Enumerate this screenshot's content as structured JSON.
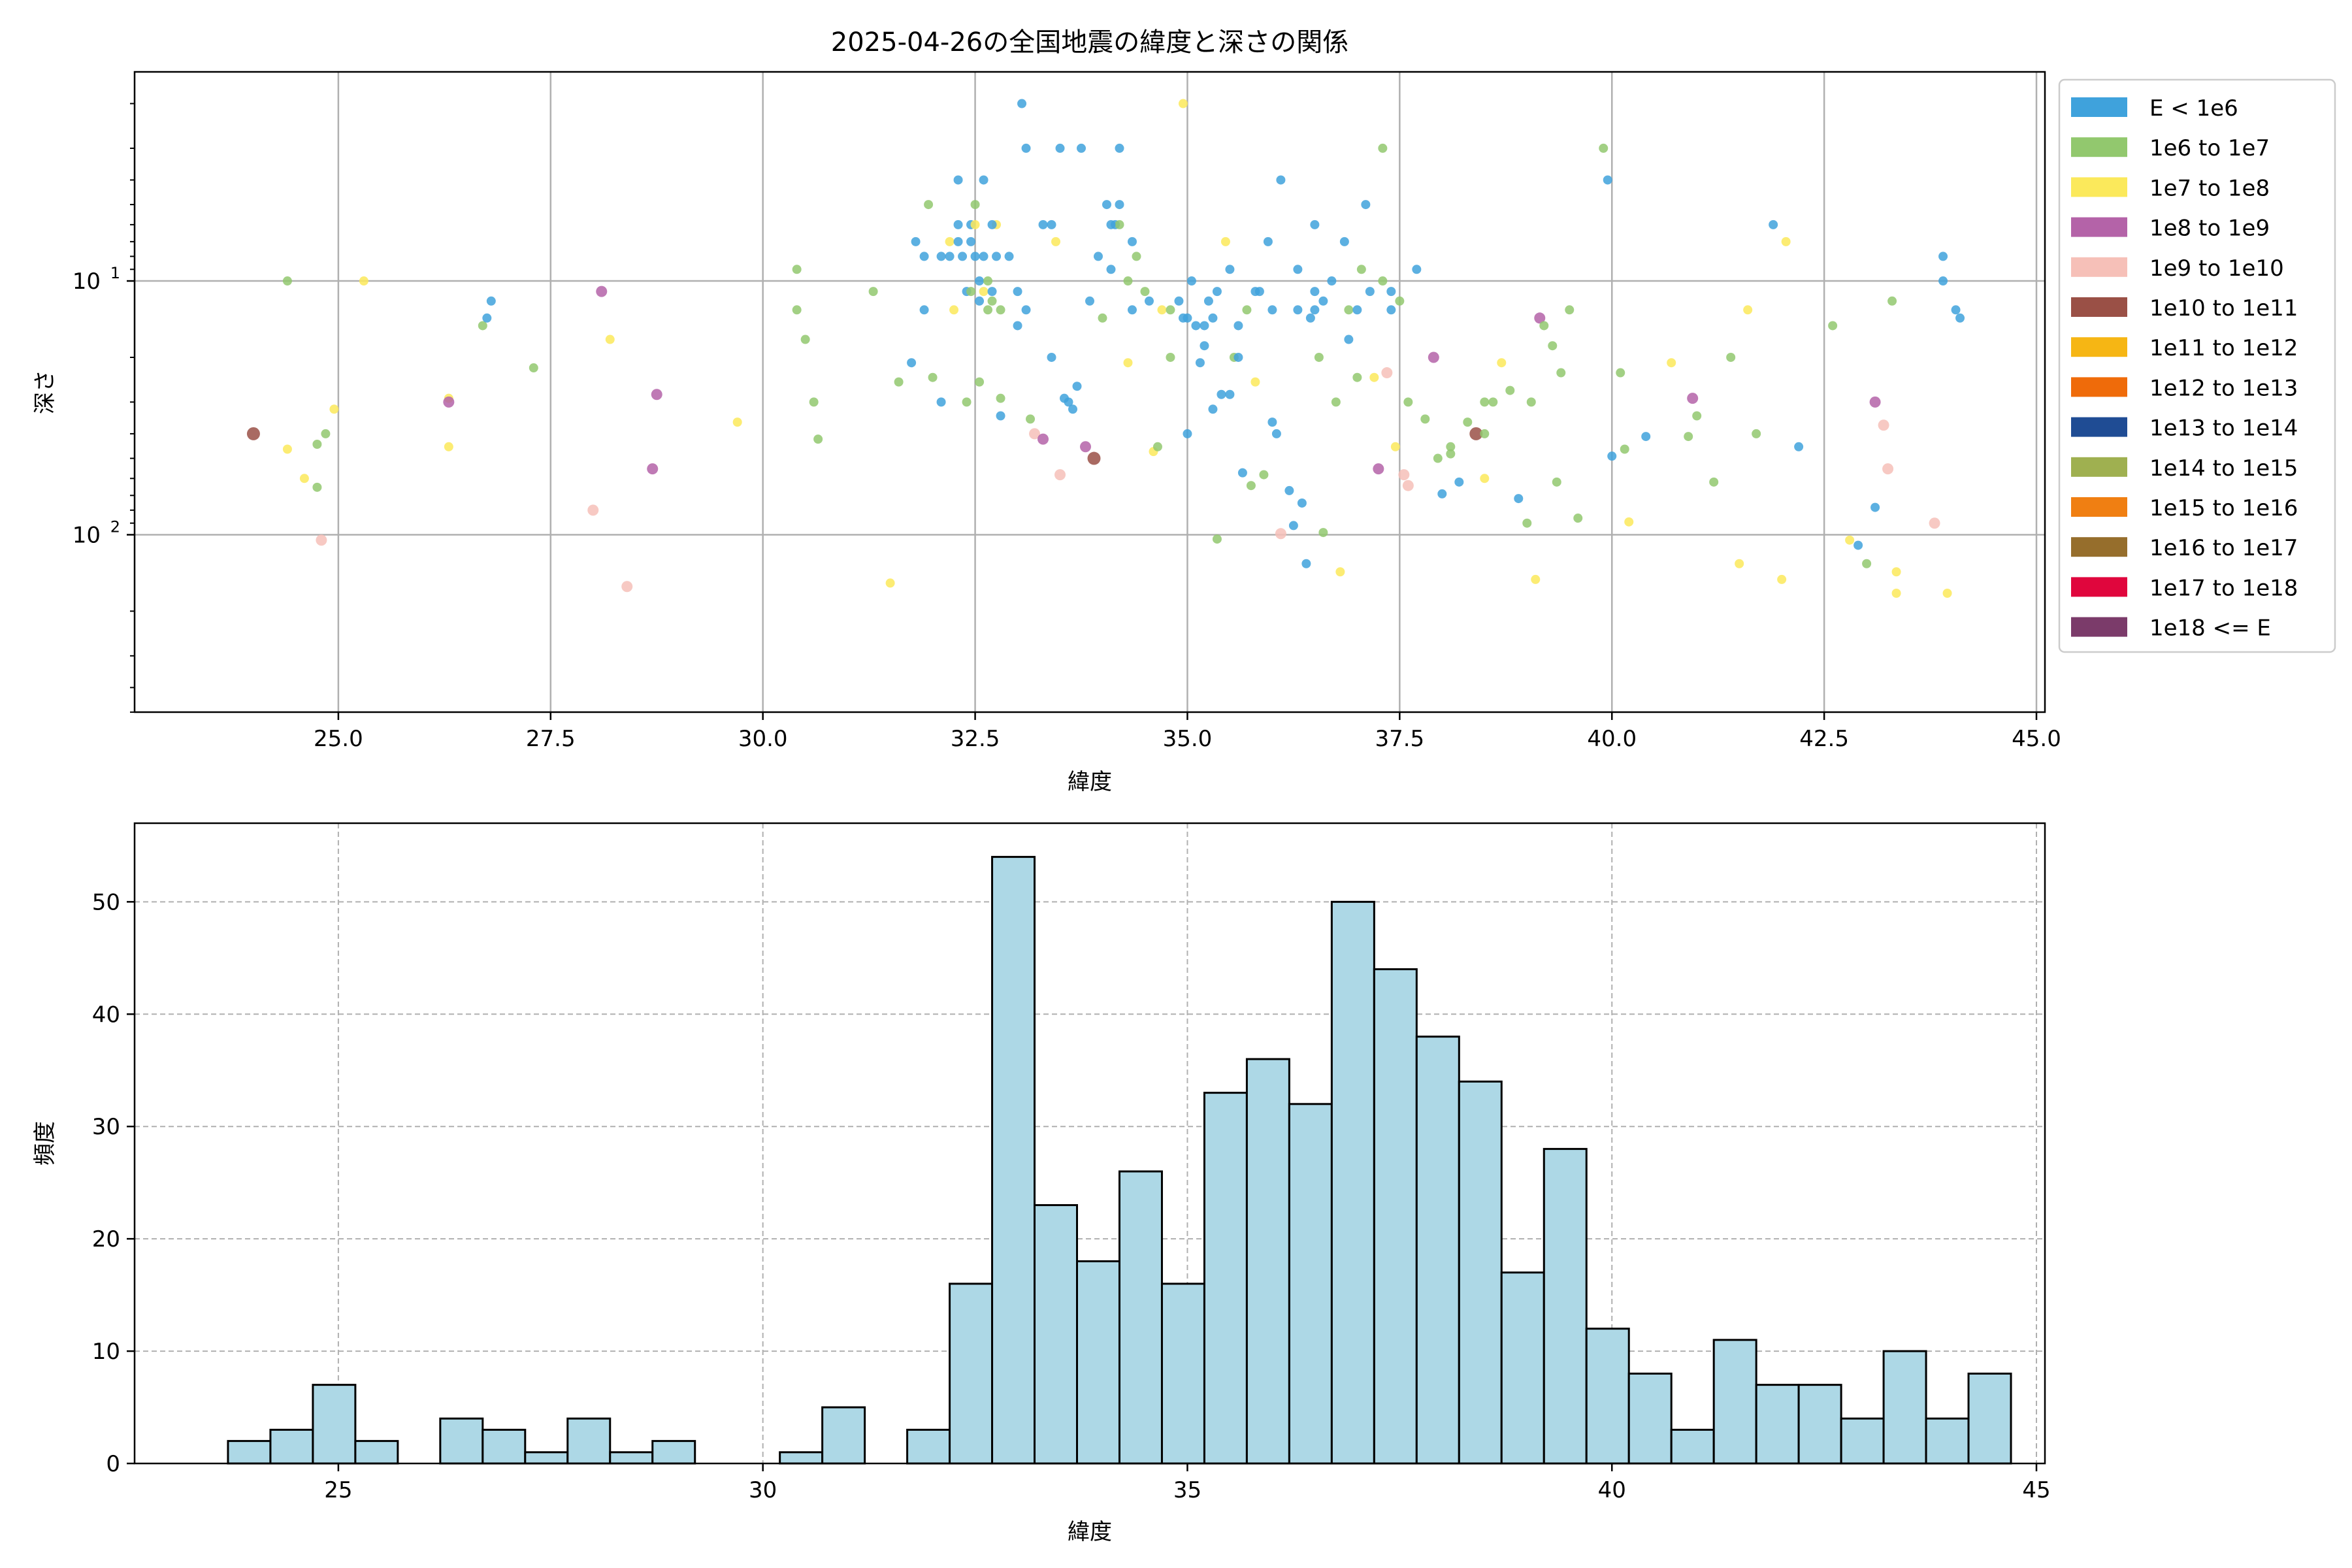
{
  "chart_data": [
    {
      "type": "scatter",
      "title": "2025-04-26の全国地震の緯度と深さの関係",
      "xlabel": "緯度",
      "ylabel": "深さ",
      "xlim": [
        22.6,
        45.1
      ],
      "ylim": [
        500,
        1.5
      ],
      "yscale": "log",
      "yaxis_inverted": true,
      "xticks": [
        25.0,
        27.5,
        30.0,
        32.5,
        35.0,
        37.5,
        40.0,
        42.5,
        45.0
      ],
      "xtick_labels": [
        "25.0",
        "27.5",
        "30.0",
        "32.5",
        "35.0",
        "37.5",
        "40.0",
        "42.5",
        "45.0"
      ],
      "ytick_labels": [
        {
          "base": "10",
          "exp": "1",
          "value": 10
        },
        {
          "base": "10",
          "exp": "2",
          "value": 100
        }
      ],
      "grid": true,
      "legend_position": "outside-right-top",
      "legend": [
        {
          "label": "E < 1e6",
          "color": "#3fa2dc"
        },
        {
          "label": "1e6 to 1e7",
          "color": "#92c86e"
        },
        {
          "label": "1e7 to 1e8",
          "color": "#fbe95b"
        },
        {
          "label": "1e8 to 1e9",
          "color": "#b463a8"
        },
        {
          "label": "1e9 to 1e10",
          "color": "#f6c0b8"
        },
        {
          "label": "1e10 to 1e11",
          "color": "#9a5046"
        },
        {
          "label": "1e11 to 1e12",
          "color": "#f6b614"
        },
        {
          "label": "1e12 to 1e13",
          "color": "#ef6b0a"
        },
        {
          "label": "1e13 to 1e14",
          "color": "#1f4c94"
        },
        {
          "label": "1e14 to 1e15",
          "color": "#9fb050"
        },
        {
          "label": "1e15 to 1e16",
          "color": "#f07f12"
        },
        {
          "label": "1e16 to 1e17",
          "color": "#966e2c"
        },
        {
          "label": "1e17 to 1e18",
          "color": "#e0063d"
        },
        {
          "label": "1e18 <= E",
          "color": "#7b3b6a"
        }
      ],
      "points": [
        [
          24.0,
          40,
          5
        ],
        [
          24.4,
          46,
          2
        ],
        [
          24.4,
          10,
          1
        ],
        [
          24.6,
          60,
          2
        ],
        [
          24.75,
          65,
          1
        ],
        [
          24.75,
          44,
          1
        ],
        [
          24.8,
          105,
          4
        ],
        [
          24.85,
          40,
          1
        ],
        [
          24.95,
          32,
          2
        ],
        [
          25.3,
          10,
          2
        ],
        [
          26.3,
          45,
          2
        ],
        [
          26.3,
          29,
          2
        ],
        [
          26.3,
          30,
          3
        ],
        [
          26.7,
          15,
          1
        ],
        [
          26.75,
          14,
          0
        ],
        [
          26.8,
          12,
          0
        ],
        [
          27.3,
          22,
          1
        ],
        [
          28.0,
          80,
          4
        ],
        [
          28.1,
          11,
          3
        ],
        [
          28.2,
          17,
          2
        ],
        [
          28.4,
          160,
          4
        ],
        [
          28.7,
          55,
          3
        ],
        [
          28.75,
          28,
          3
        ],
        [
          29.7,
          36,
          2
        ],
        [
          30.4,
          9,
          1
        ],
        [
          30.4,
          13,
          1
        ],
        [
          30.5,
          17,
          1
        ],
        [
          30.6,
          30,
          1
        ],
        [
          30.65,
          42,
          1
        ],
        [
          31.3,
          11,
          1
        ],
        [
          31.5,
          155,
          2
        ],
        [
          31.6,
          25,
          1
        ],
        [
          31.75,
          21,
          0
        ],
        [
          31.8,
          7,
          0
        ],
        [
          31.9,
          8,
          0
        ],
        [
          31.9,
          13,
          0
        ],
        [
          31.95,
          5,
          1
        ],
        [
          32.0,
          24,
          1
        ],
        [
          32.1,
          8,
          0
        ],
        [
          32.1,
          30,
          0
        ],
        [
          32.2,
          8,
          0
        ],
        [
          32.2,
          7,
          2
        ],
        [
          32.25,
          13,
          2
        ],
        [
          32.3,
          6,
          0
        ],
        [
          32.3,
          4,
          0
        ],
        [
          32.35,
          8,
          0
        ],
        [
          32.4,
          30,
          1
        ],
        [
          32.4,
          11,
          0
        ],
        [
          32.45,
          6,
          0
        ],
        [
          32.45,
          11,
          1
        ],
        [
          32.5,
          8,
          0
        ],
        [
          32.5,
          5,
          1
        ],
        [
          32.5,
          6,
          2
        ],
        [
          32.55,
          25,
          1
        ],
        [
          32.55,
          10,
          0
        ],
        [
          32.6,
          8,
          0
        ],
        [
          32.6,
          11,
          2
        ],
        [
          32.6,
          4,
          0
        ],
        [
          32.65,
          10,
          1
        ],
        [
          32.65,
          13,
          1
        ],
        [
          32.7,
          11,
          0
        ],
        [
          32.7,
          12,
          1
        ],
        [
          32.75,
          8,
          0
        ],
        [
          32.75,
          6,
          2
        ],
        [
          32.8,
          13,
          1
        ],
        [
          32.8,
          29,
          1
        ],
        [
          32.9,
          8,
          0
        ],
        [
          33.0,
          11,
          0
        ],
        [
          33.05,
          2,
          0
        ],
        [
          33.1,
          3,
          0
        ],
        [
          33.15,
          35,
          1
        ],
        [
          33.2,
          40,
          4
        ],
        [
          33.3,
          42,
          3
        ],
        [
          33.4,
          6,
          0
        ],
        [
          33.4,
          20,
          0
        ],
        [
          33.45,
          7,
          2
        ],
        [
          33.5,
          58,
          4
        ],
        [
          33.5,
          3,
          0
        ],
        [
          33.55,
          29,
          0
        ],
        [
          33.6,
          30,
          0
        ],
        [
          33.65,
          32,
          0
        ],
        [
          33.7,
          26,
          0
        ],
        [
          33.75,
          3,
          0
        ],
        [
          33.8,
          45,
          3
        ],
        [
          33.85,
          12,
          0
        ],
        [
          33.9,
          50,
          5
        ],
        [
          33.95,
          8,
          0
        ],
        [
          34.0,
          14,
          1
        ],
        [
          34.05,
          5,
          0
        ],
        [
          34.1,
          9,
          0
        ],
        [
          34.15,
          6,
          0
        ],
        [
          34.2,
          3,
          0
        ],
        [
          34.2,
          6,
          1
        ],
        [
          34.3,
          21,
          2
        ],
        [
          34.35,
          13,
          0
        ],
        [
          34.35,
          7,
          0
        ],
        [
          34.4,
          8,
          1
        ],
        [
          34.5,
          11,
          1
        ],
        [
          34.55,
          12,
          0
        ],
        [
          34.6,
          47,
          2
        ],
        [
          34.65,
          45,
          1
        ],
        [
          34.7,
          13,
          2
        ],
        [
          34.8,
          13,
          1
        ],
        [
          34.9,
          12,
          0
        ],
        [
          34.95,
          2,
          2
        ],
        [
          35.0,
          14,
          0
        ],
        [
          35.05,
          10,
          0
        ],
        [
          35.1,
          15,
          0
        ],
        [
          35.15,
          21,
          0
        ],
        [
          35.2,
          15,
          0
        ],
        [
          35.25,
          12,
          0
        ],
        [
          35.3,
          32,
          0
        ],
        [
          35.35,
          104,
          1
        ],
        [
          35.4,
          28,
          0
        ],
        [
          35.45,
          7,
          2
        ],
        [
          35.5,
          9,
          0
        ],
        [
          35.55,
          20,
          1
        ],
        [
          35.6,
          15,
          0
        ],
        [
          35.65,
          57,
          0
        ],
        [
          35.7,
          13,
          1
        ],
        [
          35.75,
          64,
          1
        ],
        [
          35.8,
          25,
          2
        ],
        [
          35.85,
          11,
          0
        ],
        [
          35.9,
          58,
          1
        ],
        [
          35.95,
          7,
          0
        ],
        [
          36.0,
          13,
          0
        ],
        [
          36.05,
          40,
          0
        ],
        [
          36.1,
          99,
          4
        ],
        [
          36.2,
          67,
          0
        ],
        [
          36.25,
          92,
          0
        ],
        [
          36.3,
          9,
          0
        ],
        [
          36.35,
          75,
          0
        ],
        [
          36.4,
          130,
          0
        ],
        [
          36.45,
          14,
          0
        ],
        [
          36.5,
          11,
          0
        ],
        [
          36.55,
          20,
          1
        ],
        [
          36.6,
          98,
          1
        ],
        [
          36.7,
          10,
          0
        ],
        [
          36.75,
          30,
          1
        ],
        [
          36.8,
          140,
          2
        ],
        [
          36.85,
          7,
          0
        ],
        [
          36.9,
          17,
          0
        ],
        [
          37.0,
          24,
          1
        ],
        [
          37.05,
          9,
          1
        ],
        [
          37.1,
          5,
          0
        ],
        [
          37.15,
          11,
          0
        ],
        [
          37.2,
          24,
          2
        ],
        [
          37.25,
          55,
          3
        ],
        [
          37.3,
          10,
          1
        ],
        [
          37.35,
          23,
          4
        ],
        [
          37.4,
          11,
          0
        ],
        [
          37.45,
          45,
          2
        ],
        [
          37.5,
          12,
          1
        ],
        [
          37.55,
          58,
          4
        ],
        [
          37.6,
          64,
          4
        ],
        [
          37.7,
          9,
          0
        ],
        [
          37.8,
          35,
          1
        ],
        [
          37.9,
          20,
          3
        ],
        [
          37.95,
          50,
          1
        ],
        [
          38.0,
          69,
          0
        ],
        [
          38.1,
          45,
          1
        ],
        [
          38.2,
          62,
          0
        ],
        [
          38.3,
          36,
          1
        ],
        [
          38.4,
          40,
          5
        ],
        [
          38.5,
          40,
          1
        ],
        [
          38.5,
          60,
          2
        ],
        [
          38.6,
          30,
          1
        ],
        [
          38.7,
          21,
          2
        ],
        [
          38.8,
          27,
          1
        ],
        [
          38.9,
          72,
          0
        ],
        [
          39.0,
          90,
          1
        ],
        [
          39.05,
          30,
          1
        ],
        [
          39.1,
          150,
          2
        ],
        [
          39.15,
          14,
          3
        ],
        [
          39.2,
          15,
          1
        ],
        [
          39.3,
          18,
          1
        ],
        [
          39.35,
          62,
          1
        ],
        [
          39.4,
          23,
          1
        ],
        [
          39.5,
          13,
          1
        ],
        [
          39.6,
          86,
          1
        ],
        [
          39.9,
          3,
          1
        ],
        [
          39.95,
          4,
          0
        ],
        [
          40.0,
          49,
          0
        ],
        [
          40.1,
          23,
          1
        ],
        [
          40.15,
          46,
          1
        ],
        [
          40.2,
          89,
          2
        ],
        [
          40.4,
          41,
          0
        ],
        [
          40.7,
          21,
          2
        ],
        [
          40.9,
          41,
          1
        ],
        [
          40.95,
          29,
          3
        ],
        [
          41.0,
          34,
          1
        ],
        [
          41.2,
          62,
          1
        ],
        [
          41.4,
          20,
          1
        ],
        [
          41.5,
          130,
          2
        ],
        [
          41.6,
          13,
          2
        ],
        [
          41.7,
          40,
          1
        ],
        [
          41.9,
          6,
          0
        ],
        [
          42.0,
          150,
          2
        ],
        [
          42.05,
          7,
          2
        ],
        [
          42.2,
          45,
          0
        ],
        [
          42.6,
          15,
          1
        ],
        [
          42.8,
          105,
          2
        ],
        [
          42.9,
          110,
          0
        ],
        [
          43.0,
          130,
          1
        ],
        [
          43.1,
          30,
          3
        ],
        [
          43.2,
          37,
          4
        ],
        [
          43.25,
          55,
          4
        ],
        [
          43.3,
          12,
          1
        ],
        [
          43.35,
          140,
          2
        ],
        [
          43.35,
          170,
          2
        ],
        [
          43.8,
          90,
          4
        ],
        [
          43.9,
          10,
          0
        ],
        [
          43.95,
          170,
          2
        ],
        [
          44.05,
          13,
          0
        ],
        [
          44.1,
          14,
          0
        ],
        [
          43.9,
          8,
          0
        ],
        [
          43.1,
          78,
          0
        ],
        [
          34.2,
          5,
          0
        ],
        [
          36.5,
          6,
          0
        ],
        [
          35.6,
          20,
          0
        ],
        [
          36.1,
          4,
          0
        ],
        [
          35.0,
          40,
          0
        ],
        [
          34.3,
          10,
          1
        ],
        [
          32.8,
          34,
          0
        ],
        [
          33.0,
          15,
          0
        ],
        [
          36.3,
          13,
          0
        ],
        [
          33.3,
          6,
          0
        ],
        [
          34.1,
          6,
          0
        ],
        [
          35.8,
          11,
          0
        ],
        [
          36.9,
          13,
          1
        ],
        [
          37.3,
          3,
          1
        ],
        [
          38.1,
          48,
          1
        ],
        [
          38.5,
          30,
          1
        ],
        [
          37.6,
          30,
          1
        ],
        [
          36.5,
          13,
          0
        ],
        [
          32.3,
          7,
          0
        ],
        [
          33.1,
          13,
          0
        ],
        [
          34.8,
          20,
          1
        ],
        [
          35.5,
          28,
          0
        ],
        [
          36.0,
          36,
          0
        ],
        [
          35.3,
          14,
          0
        ],
        [
          35.2,
          18,
          0
        ],
        [
          35.35,
          11,
          0
        ],
        [
          34.95,
          14,
          0
        ],
        [
          36.6,
          12,
          0
        ],
        [
          37.0,
          13,
          0
        ],
        [
          37.4,
          13,
          0
        ],
        [
          32.7,
          6,
          0
        ],
        [
          32.55,
          12,
          0
        ],
        [
          32.45,
          7,
          0
        ]
      ]
    },
    {
      "type": "bar",
      "xlabel": "緯度",
      "ylabel": "頻度",
      "xlim": [
        22.6,
        45.1
      ],
      "ylim": [
        0,
        57
      ],
      "xticks": [
        25,
        30,
        35,
        40,
        45
      ],
      "xtick_labels": [
        "25",
        "30",
        "35",
        "40",
        "45"
      ],
      "yticks": [
        0,
        10,
        20,
        30,
        40,
        50
      ],
      "ytick_labels": [
        "0",
        "10",
        "20",
        "30",
        "40",
        "50"
      ],
      "grid": true,
      "bar_color": "#add8e6",
      "bin_start": 23.7,
      "bin_width": 0.5,
      "values": [
        2,
        3,
        7,
        2,
        0,
        4,
        3,
        1,
        4,
        1,
        2,
        0,
        0,
        1,
        5,
        0,
        3,
        16,
        54,
        23,
        18,
        26,
        16,
        33,
        36,
        32,
        50,
        44,
        38,
        34,
        17,
        28,
        12,
        8,
        3,
        11,
        7,
        7,
        4,
        10,
        4,
        8
      ]
    }
  ]
}
